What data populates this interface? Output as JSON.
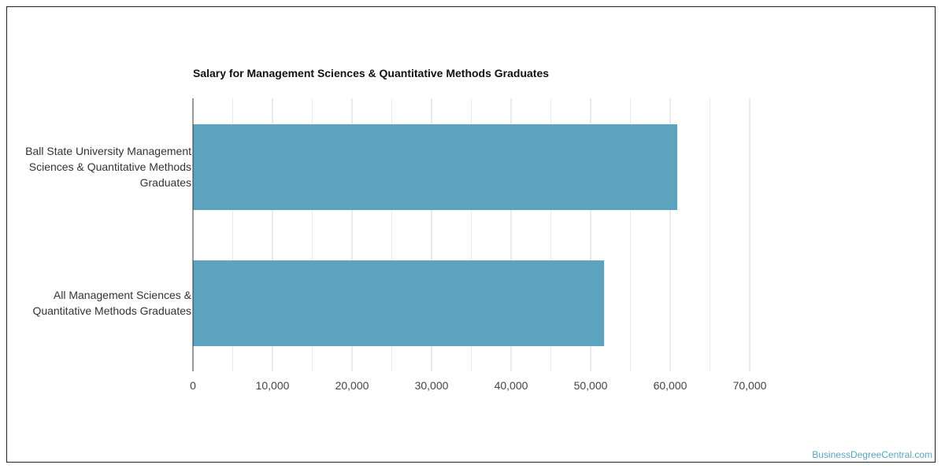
{
  "chart_data": {
    "type": "bar",
    "orientation": "horizontal",
    "title": "Salary for Management Sciences & Quantitative Methods Graduates",
    "categories": [
      "Ball State University Management Sciences & Quantitative Methods Graduates",
      "All Management Sciences & Quantitative Methods Graduates"
    ],
    "values": [
      60900,
      51700
    ],
    "xlim": [
      0,
      70000
    ],
    "xticks": [
      0,
      10000,
      20000,
      30000,
      40000,
      50000,
      60000,
      70000
    ],
    "xtick_labels": [
      "0",
      "10,000",
      "20,000",
      "30,000",
      "40,000",
      "50,000",
      "60,000",
      "70,000"
    ],
    "xlabel": "",
    "ylabel": "",
    "grid": true,
    "bar_color": "#5ba3bf"
  },
  "credit": "BusinessDegreeCentral.com"
}
